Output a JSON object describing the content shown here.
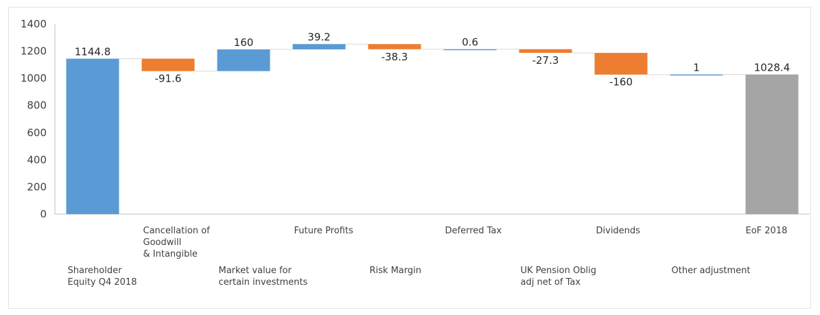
{
  "chart_data": {
    "type": "waterfall",
    "categories": [
      "Shareholder Equity Q4 2018",
      "Cancellation of Goodwill & Intangible",
      "Market value for certain investments",
      "Future Profits",
      "Risk Margin",
      "Deferred Tax",
      "UK Pension Oblig adj net of Tax",
      "Dividends",
      "Other adjustment",
      "EoF 2018"
    ],
    "category_label_lines": [
      [
        "Shareholder",
        "Equity Q4 2018"
      ],
      [
        "Cancellation of",
        "Goodwill",
        "& Intangible"
      ],
      [
        "Market value for",
        "certain investments"
      ],
      [
        "Future Profits"
      ],
      [
        "Risk Margin"
      ],
      [
        "Deferred Tax"
      ],
      [
        "UK Pension Oblig",
        "adj net of Tax"
      ],
      [
        "Dividends"
      ],
      [
        "Other adjustment"
      ],
      [
        "EoF 2018"
      ]
    ],
    "values": [
      1144.8,
      -91.6,
      160,
      39.2,
      -38.3,
      0.6,
      -27.3,
      -160,
      1,
      1028.4
    ],
    "data_labels": [
      "1144.8",
      "-91.6",
      "160",
      "39.2",
      "-38.3",
      "0.6",
      "-27.3",
      "-160",
      "1",
      "1028.4"
    ],
    "kinds": [
      "total",
      "delta",
      "delta",
      "delta",
      "delta",
      "delta",
      "delta",
      "delta",
      "delta",
      "total"
    ],
    "ylim": [
      0,
      1400
    ],
    "yticks": [
      0,
      200,
      400,
      600,
      800,
      1000,
      1200,
      1400
    ],
    "grid": false,
    "legend": "none",
    "colors": {
      "increase": "#5b9bd5",
      "decrease": "#ed7d31",
      "start_total": "#5b9bd5",
      "end_total": "#a5a5a5",
      "connector": "#d9d9d9",
      "axis": "#bfbfbf"
    }
  }
}
